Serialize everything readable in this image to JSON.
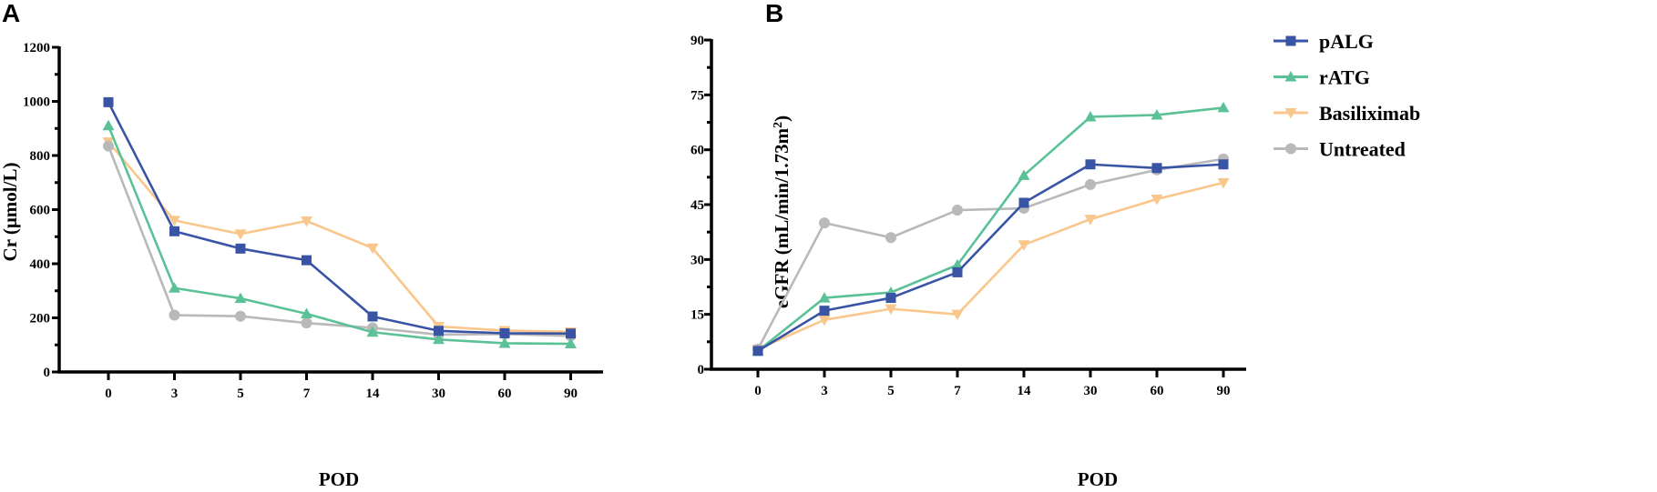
{
  "chart_data": [
    {
      "panel": "A",
      "type": "line",
      "categories": [
        "0",
        "3",
        "5",
        "7",
        "14",
        "30",
        "60",
        "90"
      ],
      "xlabel": "POD",
      "ylabel": "Cr (μmol/L)",
      "ylim": [
        0,
        1200
      ],
      "yticks": [
        "0",
        "200",
        "400",
        "600",
        "800",
        "1000",
        "1200"
      ],
      "grid": false,
      "series": [
        {
          "name": "Basiliximab",
          "marker": "triangle-down",
          "color": "#f9c78b",
          "values": [
            850,
            560,
            510,
            558,
            458,
            168,
            153,
            148
          ]
        },
        {
          "name": "Untreated",
          "marker": "circle",
          "color": "#b9b9b9",
          "values": [
            835,
            210,
            206,
            181,
            163,
            138,
            140,
            133
          ]
        },
        {
          "name": "rATG",
          "marker": "triangle-up",
          "color": "#5bc196",
          "values": [
            910,
            310,
            272,
            215,
            147,
            120,
            106,
            104
          ]
        },
        {
          "name": "pALG",
          "marker": "square",
          "color": "#3954a5",
          "values": [
            997,
            520,
            456,
            413,
            205,
            152,
            143,
            142
          ]
        }
      ]
    },
    {
      "panel": "B",
      "type": "line",
      "categories": [
        "0",
        "3",
        "5",
        "7",
        "14",
        "30",
        "60",
        "90"
      ],
      "xlabel": "POD",
      "ylabel_main": "eGFR (mL/min/1.73m",
      "ylabel_sup": "2",
      "ylabel_end": ")",
      "ylim": [
        0,
        90
      ],
      "yticks": [
        "0",
        "15",
        "30",
        "45",
        "60",
        "75",
        "90"
      ],
      "grid": false,
      "legend_position": "top-right",
      "series": [
        {
          "name": "Basiliximab",
          "marker": "triangle-down",
          "color": "#f9c78b",
          "values": [
            5.5,
            13.5,
            16.5,
            15,
            34,
            41,
            46.5,
            51
          ]
        },
        {
          "name": "Untreated",
          "marker": "circle",
          "color": "#b9b9b9",
          "values": [
            5.5,
            40,
            36,
            43.5,
            44,
            50.5,
            54.5,
            57.5
          ]
        },
        {
          "name": "rATG",
          "marker": "triangle-up",
          "color": "#5bc196",
          "values": [
            5,
            19.5,
            21,
            28.5,
            53,
            69,
            69.5,
            71.5
          ]
        },
        {
          "name": "pALG",
          "marker": "square",
          "color": "#3954a5",
          "values": [
            5,
            16,
            19.5,
            26.5,
            45.5,
            56,
            55,
            56
          ]
        }
      ]
    }
  ],
  "legend": [
    {
      "name": "pALG",
      "marker": "square",
      "color": "#3954a5"
    },
    {
      "name": "rATG",
      "marker": "triangle-up",
      "color": "#5bc196"
    },
    {
      "name": "Basiliximab",
      "marker": "triangle-down",
      "color": "#f9c78b"
    },
    {
      "name": "Untreated",
      "marker": "circle",
      "color": "#b9b9b9"
    }
  ]
}
